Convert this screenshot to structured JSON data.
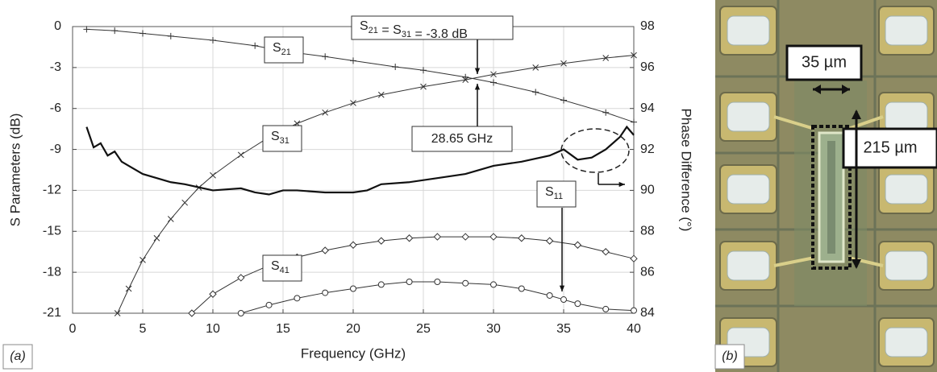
{
  "chart_data": {
    "type": "line",
    "panel_label": "(a)",
    "x_label": "Frequency (GHz)",
    "y_label": "S Parameters (dB)",
    "y2_label": "Phase Difference (°)",
    "xlim": [
      0,
      40
    ],
    "xticks": [
      0,
      5,
      10,
      15,
      20,
      25,
      30,
      35,
      40
    ],
    "ylim": [
      -21,
      0
    ],
    "yticks": [
      0,
      -3,
      -6,
      -9,
      -12,
      -15,
      -18,
      -21
    ],
    "y2lim": [
      84,
      98
    ],
    "y2ticks": [
      84,
      86,
      88,
      90,
      92,
      94,
      96,
      98
    ],
    "grid": true,
    "series": [
      {
        "name": "S21",
        "color": "#333333",
        "marker": "plus",
        "x": [
          1,
          3,
          5,
          7,
          10,
          13,
          15,
          18,
          20,
          23,
          25,
          28,
          30,
          33,
          35,
          38,
          40
        ],
        "values": [
          -0.2,
          -0.3,
          -0.5,
          -0.7,
          -1.0,
          -1.4,
          -1.8,
          -2.2,
          -2.5,
          -2.95,
          -3.2,
          -3.7,
          -4.1,
          -4.8,
          -5.4,
          -6.3,
          -7.0
        ]
      },
      {
        "name": "S31",
        "color": "#333333",
        "marker": "cross",
        "x": [
          3.2,
          4,
          5,
          6,
          7,
          8,
          9,
          10,
          12,
          14,
          16,
          18,
          20,
          22,
          25,
          28,
          30,
          33,
          35,
          38,
          40
        ],
        "values": [
          -21,
          -19.2,
          -17.1,
          -15.5,
          -14.1,
          -12.9,
          -11.8,
          -10.9,
          -9.4,
          -8.1,
          -7.1,
          -6.3,
          -5.6,
          -5.0,
          -4.4,
          -3.9,
          -3.5,
          -3.0,
          -2.7,
          -2.3,
          -2.1
        ]
      },
      {
        "name": "S41",
        "color": "#333333",
        "marker": "diamond",
        "x": [
          8.5,
          10,
          12,
          14,
          16,
          18,
          20,
          22,
          24,
          26,
          28,
          30,
          32,
          34,
          36,
          38,
          40
        ],
        "values": [
          -21,
          -19.6,
          -18.4,
          -17.5,
          -16.9,
          -16.4,
          -16.0,
          -15.7,
          -15.5,
          -15.4,
          -15.4,
          -15.4,
          -15.5,
          -15.7,
          -16.0,
          -16.5,
          -17.0
        ]
      },
      {
        "name": "S11",
        "color": "#333333",
        "marker": "circle",
        "x": [
          12,
          14,
          16,
          18,
          20,
          22,
          24,
          26,
          28,
          30,
          32,
          34,
          35,
          36,
          38,
          40
        ],
        "values": [
          -21,
          -20.4,
          -19.9,
          -19.5,
          -19.2,
          -18.9,
          -18.7,
          -18.7,
          -18.8,
          -18.9,
          -19.2,
          -19.7,
          -20.0,
          -20.3,
          -20.7,
          -20.8
        ]
      },
      {
        "color": "#111111",
        "marker": "none",
        "axis": "y2",
        "x": [
          1,
          1.5,
          2,
          2.5,
          3,
          3.5,
          4,
          5,
          6,
          7,
          8,
          10,
          12,
          13,
          14,
          15,
          16,
          18,
          20,
          21,
          22,
          24,
          26,
          28,
          30,
          32,
          34,
          35,
          36,
          37,
          38,
          39,
          39.5,
          40
        ],
        "values": [
          93.1,
          92.1,
          92.3,
          91.7,
          91.9,
          91.4,
          91.2,
          90.8,
          90.6,
          90.4,
          90.3,
          90.0,
          90.1,
          89.9,
          89.8,
          90.0,
          90.0,
          89.9,
          89.9,
          90.0,
          90.3,
          90.4,
          90.6,
          90.8,
          91.2,
          91.4,
          91.7,
          92.0,
          91.5,
          91.6,
          92.0,
          92.6,
          93.1,
          92.7
        ]
      }
    ],
    "annotations": [
      "S21 = S31 = -3.8 dB",
      "28.65 GHz"
    ]
  },
  "image_panel": {
    "label": "(b)",
    "annotations": [
      "35 µm",
      "215 µm"
    ]
  }
}
